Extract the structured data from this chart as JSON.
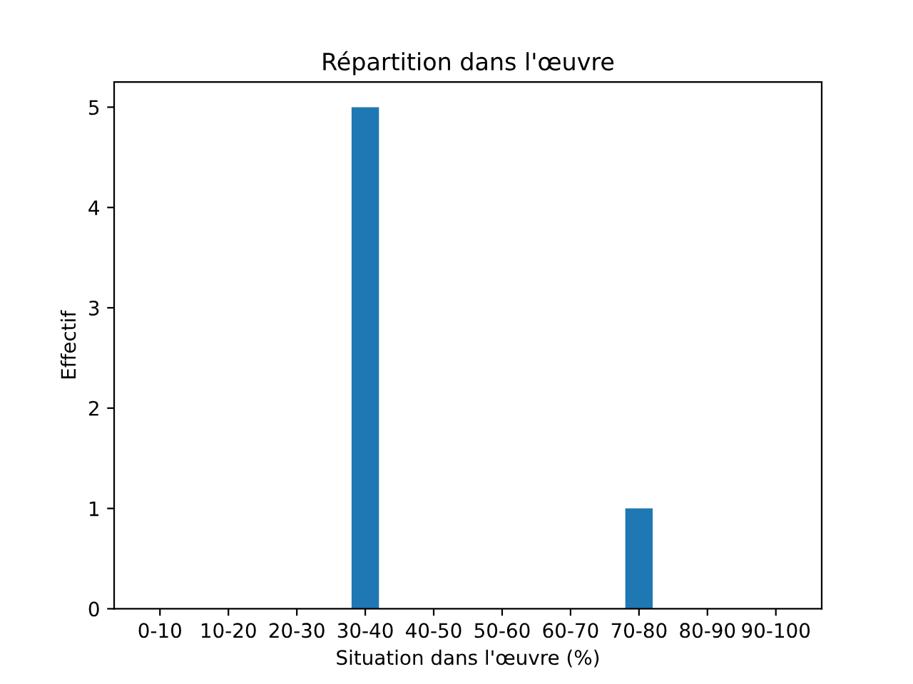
{
  "chart_data": {
    "type": "bar",
    "title": "Répartition dans l'œuvre",
    "xlabel": "Situation dans l'œuvre (%)",
    "ylabel": "Effectif",
    "categories": [
      "0-10",
      "10-20",
      "20-30",
      "30-40",
      "40-50",
      "50-60",
      "60-70",
      "70-80",
      "80-90",
      "90-100"
    ],
    "values": [
      0,
      0,
      0,
      5,
      0,
      0,
      0,
      1,
      0,
      0
    ],
    "color": "#1f77b4",
    "ylim": [
      0,
      5.25
    ],
    "yticks": [
      0,
      1,
      2,
      3,
      4,
      5
    ],
    "grid": false,
    "legend": false
  }
}
